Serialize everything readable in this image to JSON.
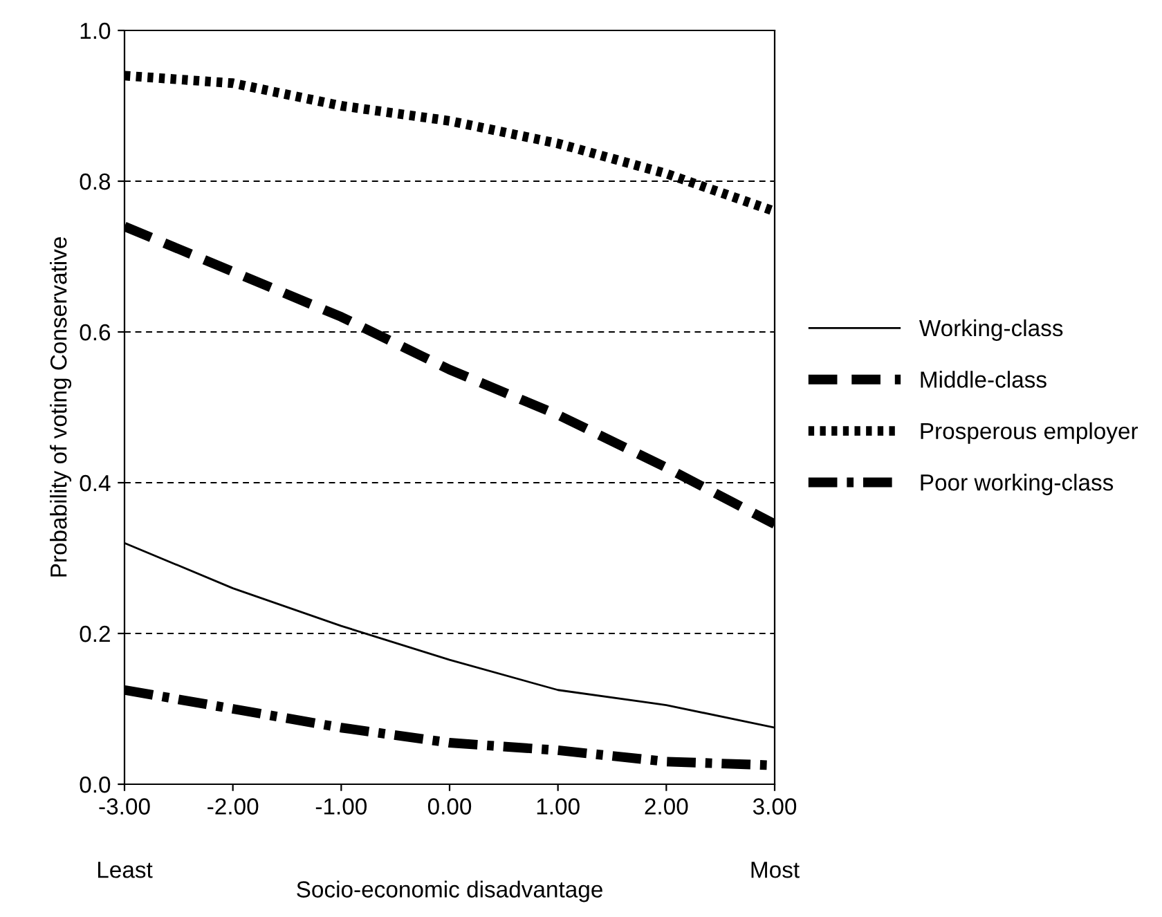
{
  "chart_data": {
    "type": "line",
    "xlabel": "Socio-economic disadvantage",
    "ylabel": "Probability of voting Conservative",
    "x": [
      -3,
      -2,
      -1,
      0,
      1,
      2,
      3
    ],
    "xlim": [
      -3,
      3
    ],
    "xticks": [
      {
        "value": -3,
        "label": "-3.00"
      },
      {
        "value": -2,
        "label": "-2.00"
      },
      {
        "value": -1,
        "label": "-1.00"
      },
      {
        "value": 0,
        "label": "0.00"
      },
      {
        "value": 1,
        "label": "1.00"
      },
      {
        "value": 2,
        "label": "2.00"
      },
      {
        "value": 3,
        "label": "3.00"
      }
    ],
    "ylim": [
      0,
      1
    ],
    "yticks": [
      {
        "value": 0,
        "label": "0.0"
      },
      {
        "value": 0.2,
        "label": "0.2"
      },
      {
        "value": 0.4,
        "label": "0.4"
      },
      {
        "value": 0.6,
        "label": "0.6"
      },
      {
        "value": 0.8,
        "label": "0.8"
      },
      {
        "value": 1,
        "label": "1.0"
      }
    ],
    "grid": "y",
    "legend": "right",
    "marker": "none",
    "annotations": [
      "Least",
      "Most"
    ],
    "series": [
      {
        "name": "Working-class",
        "color": "#000000",
        "line_style": "solid",
        "values": [
          0.32,
          0.26,
          0.21,
          0.165,
          0.125,
          0.105,
          0.075
        ]
      },
      {
        "name": "Middle-class",
        "color": "#000000",
        "line_style": "dashed",
        "values": [
          0.74,
          0.68,
          0.62,
          0.55,
          0.49,
          0.42,
          0.345
        ]
      },
      {
        "name": "Prosperous employer",
        "color": "#000000",
        "line_style": "dotted",
        "values": [
          0.94,
          0.93,
          0.9,
          0.88,
          0.85,
          0.81,
          0.76
        ]
      },
      {
        "name": "Poor working-class",
        "color": "#000000",
        "line_style": "dashdot",
        "values": [
          0.125,
          0.1,
          0.075,
          0.055,
          0.045,
          0.03,
          0.025
        ]
      }
    ]
  }
}
